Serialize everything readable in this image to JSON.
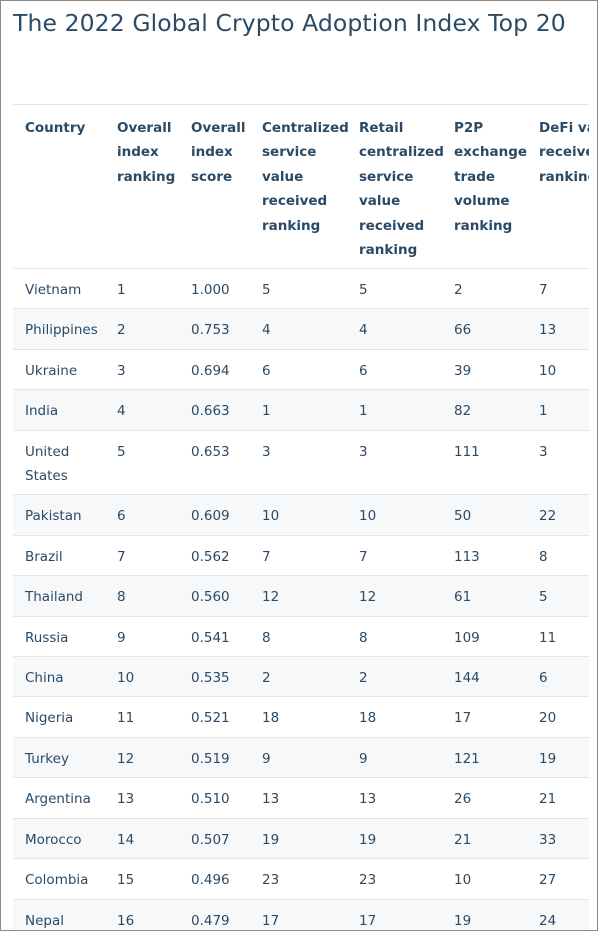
{
  "title": "The 2022 Global Crypto Adoption Index Top 20",
  "table": {
    "headers": [
      "Country",
      "Overall index ranking",
      "Overall index score",
      "Centralized service value received ranking",
      "Retail centralized service value received ranking",
      "P2P exchange trade volume ranking",
      "DeFi value received ranking"
    ],
    "rows": [
      [
        "Vietnam",
        "1",
        "1.000",
        "5",
        "5",
        "2",
        "7"
      ],
      [
        "Philippines",
        "2",
        "0.753",
        "4",
        "4",
        "66",
        "13"
      ],
      [
        "Ukraine",
        "3",
        "0.694",
        "6",
        "6",
        "39",
        "10"
      ],
      [
        "India",
        "4",
        "0.663",
        "1",
        "1",
        "82",
        "1"
      ],
      [
        "United States",
        "5",
        "0.653",
        "3",
        "3",
        "111",
        "3"
      ],
      [
        "Pakistan",
        "6",
        "0.609",
        "10",
        "10",
        "50",
        "22"
      ],
      [
        "Brazil",
        "7",
        "0.562",
        "7",
        "7",
        "113",
        "8"
      ],
      [
        "Thailand",
        "8",
        "0.560",
        "12",
        "12",
        "61",
        "5"
      ],
      [
        "Russia",
        "9",
        "0.541",
        "8",
        "8",
        "109",
        "11"
      ],
      [
        "China",
        "10",
        "0.535",
        "2",
        "2",
        "144",
        "6"
      ],
      [
        "Nigeria",
        "11",
        "0.521",
        "18",
        "18",
        "17",
        "20"
      ],
      [
        "Turkey",
        "12",
        "0.519",
        "9",
        "9",
        "121",
        "19"
      ],
      [
        "Argentina",
        "13",
        "0.510",
        "13",
        "13",
        "26",
        "21"
      ],
      [
        "Morocco",
        "14",
        "0.507",
        "19",
        "19",
        "21",
        "33"
      ],
      [
        "Colombia",
        "15",
        "0.496",
        "23",
        "23",
        "10",
        "27"
      ],
      [
        "Nepal",
        "16",
        "0.479",
        "17",
        "17",
        "19",
        "24"
      ]
    ]
  }
}
